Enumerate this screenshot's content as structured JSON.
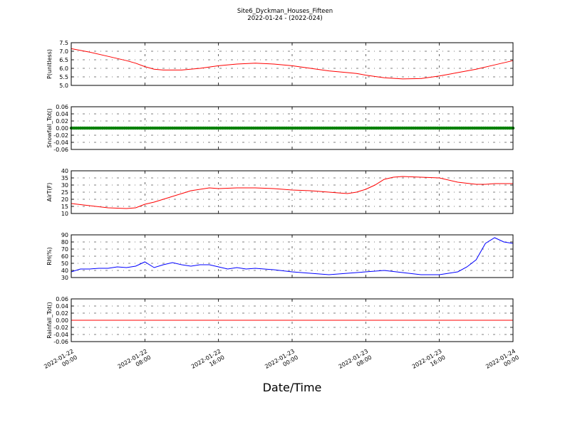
{
  "figure": {
    "title": "Site6_Dyckman_Houses_Fifteen",
    "subtitle": "2022-01-24 - (2022-024)",
    "xlabel": "Date/Time"
  },
  "chart_data": [
    {
      "type": "line",
      "name": "P",
      "ylabel": "P(unitless)",
      "ylim": [
        5.0,
        7.5
      ],
      "yticks": [
        "7.5",
        "7.0",
        "6.5",
        "6.0",
        "5.5",
        "5.0"
      ],
      "ytick_values": [
        7.5,
        7.0,
        6.5,
        6.0,
        5.5,
        5.0
      ],
      "color": "#ff0000",
      "grid": true,
      "x_hours": [
        0,
        2,
        4,
        6,
        7,
        8,
        9,
        10,
        12,
        14,
        16,
        18,
        20,
        22,
        24,
        26,
        28,
        30,
        31,
        32,
        34,
        36,
        38,
        40,
        42,
        44,
        46,
        48
      ],
      "values": [
        7.15,
        6.95,
        6.7,
        6.45,
        6.3,
        6.1,
        5.95,
        5.9,
        5.9,
        6.0,
        6.15,
        6.25,
        6.3,
        6.25,
        6.15,
        6.0,
        5.85,
        5.75,
        5.7,
        5.6,
        5.45,
        5.38,
        5.4,
        5.55,
        5.75,
        5.95,
        6.2,
        6.45
      ]
    },
    {
      "type": "scatter",
      "name": "Snowfall",
      "ylabel": "Snowfall_Tot()",
      "ylim": [
        -0.06,
        0.06
      ],
      "yticks": [
        "0.06",
        "0.04",
        "0.02",
        "0.00",
        "-0.02",
        "-0.04",
        "-0.06"
      ],
      "ytick_values": [
        0.06,
        0.04,
        0.02,
        0.0,
        -0.02,
        -0.04,
        -0.06
      ],
      "color": "#008000",
      "grid": true,
      "x_range_hours": [
        0,
        48
      ],
      "constant_value": 0.0
    },
    {
      "type": "line",
      "name": "AirT",
      "ylabel": "AirT(F)",
      "ylim": [
        10,
        40
      ],
      "yticks": [
        "40",
        "35",
        "30",
        "25",
        "20",
        "15",
        "10"
      ],
      "ytick_values": [
        40,
        35,
        30,
        25,
        20,
        15,
        10
      ],
      "color": "#ff0000",
      "grid": true,
      "x_hours": [
        0,
        2,
        4,
        6,
        7,
        8,
        9,
        10,
        12,
        13,
        14,
        15,
        16,
        18,
        20,
        22,
        24,
        26,
        28,
        30,
        31,
        32,
        33,
        34,
        35,
        36,
        38,
        40,
        42,
        44,
        45,
        46,
        48
      ],
      "values": [
        17,
        15.5,
        14,
        13.5,
        14,
        16.5,
        18,
        20,
        24,
        26,
        27,
        28,
        27.5,
        28,
        28,
        27.5,
        26.5,
        26,
        25,
        24,
        25,
        27,
        30,
        34,
        35.5,
        36,
        35.5,
        35,
        32,
        30.5,
        30.5,
        31,
        31
      ]
    },
    {
      "type": "line",
      "name": "RH",
      "ylabel": "RH(%)",
      "ylim": [
        30,
        90
      ],
      "yticks": [
        "90",
        "80",
        "70",
        "60",
        "50",
        "40",
        "30"
      ],
      "ytick_values": [
        90,
        80,
        70,
        60,
        50,
        40,
        30
      ],
      "color": "#0000ff",
      "grid": true,
      "x_hours": [
        0,
        1,
        2,
        3,
        4,
        5,
        6,
        7,
        8,
        9,
        10,
        11,
        12,
        13,
        14,
        15,
        16,
        17,
        18,
        19,
        20,
        22,
        24,
        26,
        28,
        30,
        32,
        34,
        36,
        38,
        40,
        41,
        42,
        43,
        44,
        45,
        46,
        47,
        48
      ],
      "values": [
        38,
        42,
        42,
        43,
        43,
        45,
        44,
        46,
        52,
        44,
        48,
        51,
        48,
        46,
        48,
        48,
        45,
        42,
        44,
        42,
        43,
        41,
        38,
        36,
        34,
        36,
        38,
        40,
        37,
        34,
        34,
        36,
        38,
        45,
        55,
        78,
        86,
        80,
        78
      ]
    },
    {
      "type": "line",
      "name": "Rainfall",
      "ylabel": "Rainfall_Tot()",
      "ylim": [
        -0.06,
        0.06
      ],
      "yticks": [
        "0.06",
        "0.04",
        "0.02",
        "0.00",
        "-0.02",
        "-0.04",
        "-0.06"
      ],
      "ytick_values": [
        0.06,
        0.04,
        0.02,
        0.0,
        -0.02,
        -0.04,
        -0.06
      ],
      "color": "#ff0000",
      "grid": true,
      "x_hours": [
        0,
        48
      ],
      "values": [
        0.0,
        0.0
      ]
    }
  ],
  "x_axis": {
    "range_hours": [
      0,
      48
    ],
    "tick_hours": [
      0,
      8,
      16,
      24,
      32,
      40,
      48
    ],
    "tick_labels": [
      [
        "2022-01-22",
        "00:00"
      ],
      [
        "2022-01-22",
        "08:00"
      ],
      [
        "2022-01-22",
        "16:00"
      ],
      [
        "2022-01-23",
        "00:00"
      ],
      [
        "2022-01-23",
        "08:00"
      ],
      [
        "2022-01-23",
        "16:00"
      ],
      [
        "2022-01-24",
        "00:00"
      ]
    ]
  }
}
